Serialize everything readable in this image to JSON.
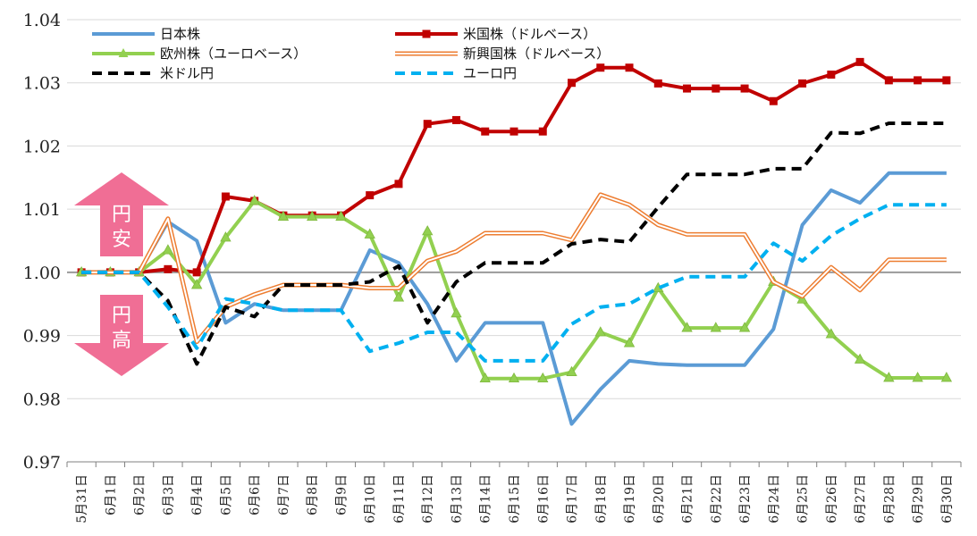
{
  "chart_data": {
    "type": "line",
    "title": "",
    "xlabel": "",
    "ylabel": "",
    "ylim": [
      0.97,
      1.04
    ],
    "yticks": [
      "0.97",
      "0.98",
      "0.99",
      "1.00",
      "1.01",
      "1.02",
      "1.03",
      "1.04"
    ],
    "grid": true,
    "legend_position": "top",
    "categories": [
      "5月31日",
      "6月1日",
      "6月2日",
      "6月3日",
      "6月4日",
      "6月5日",
      "6月6日",
      "6月7日",
      "6月8日",
      "6月9日",
      "6月10日",
      "6月11日",
      "6月12日",
      "6月13日",
      "6月14日",
      "6月15日",
      "6月16日",
      "6月17日",
      "6月18日",
      "6月19日",
      "6月20日",
      "6月21日",
      "6月22日",
      "6月23日",
      "6月24日",
      "6月25日",
      "6月26日",
      "6月27日",
      "6月28日",
      "6月29日",
      "6月30日"
    ],
    "series": [
      {
        "name": "日本株",
        "color": "#5b9bd5",
        "style": "solid",
        "values": [
          1.0,
          1.0,
          1.0,
          1.008,
          1.005,
          0.992,
          0.995,
          0.994,
          0.994,
          0.994,
          1.0035,
          1.0015,
          0.995,
          0.986,
          0.992,
          0.992,
          0.992,
          0.976,
          0.9815,
          0.986,
          0.9855,
          0.9853,
          0.9853,
          0.9853,
          0.991,
          1.0075,
          1.013,
          1.011,
          1.0157,
          1.0157,
          1.0157
        ]
      },
      {
        "name": "米国株（ドルベース）",
        "color": "#c00000",
        "style": "solid-square",
        "values": [
          1.0,
          1.0,
          1.0,
          1.0005,
          1.0,
          1.012,
          1.0113,
          1.009,
          1.009,
          1.009,
          1.0122,
          1.014,
          1.0235,
          1.0241,
          1.0223,
          1.0223,
          1.0223,
          1.03,
          1.0324,
          1.0324,
          1.0299,
          1.0291,
          1.0291,
          1.0291,
          1.0271,
          1.0299,
          1.0313,
          1.0333,
          1.0304,
          1.0304,
          1.0304
        ]
      },
      {
        "name": "欧州株（ユーロベース）",
        "color": "#92d050",
        "style": "solid-triangle",
        "values": [
          1.0,
          1.0,
          1.0,
          1.0035,
          0.998,
          1.0055,
          1.0113,
          1.0088,
          1.0088,
          1.0088,
          1.006,
          0.996,
          1.0065,
          0.9935,
          0.9832,
          0.9832,
          0.9832,
          0.9842,
          0.9905,
          0.9888,
          0.9975,
          0.9912,
          0.9912,
          0.9912,
          0.9985,
          0.9957,
          0.9902,
          0.9862,
          0.9833,
          0.9833,
          0.9833
        ]
      },
      {
        "name": "新興国株（ドルベース）",
        "color": "#ed7d31",
        "style": "double",
        "values": [
          1.0,
          1.0,
          1.0,
          1.0085,
          0.989,
          0.9945,
          0.9965,
          0.998,
          0.998,
          0.998,
          0.9975,
          0.9975,
          1.0018,
          1.0033,
          1.0062,
          1.0062,
          1.0062,
          1.0051,
          1.0123,
          1.0107,
          1.0075,
          1.006,
          1.006,
          1.006,
          0.9985,
          0.9962,
          1.0008,
          0.9972,
          1.002,
          1.002,
          1.002
        ]
      },
      {
        "name": "米ドル円",
        "color": "#000000",
        "style": "dash",
        "values": [
          1.0,
          1.0,
          1.0,
          0.9955,
          0.9855,
          0.9945,
          0.993,
          0.998,
          0.998,
          0.998,
          0.9985,
          1.001,
          0.992,
          0.9985,
          1.0015,
          1.0015,
          1.0015,
          1.0045,
          1.0052,
          1.0048,
          1.0103,
          1.0155,
          1.0155,
          1.0155,
          1.0164,
          1.0164,
          1.0221,
          1.022,
          1.0236,
          1.0236,
          1.0236
        ]
      },
      {
        "name": "ユーロ円",
        "color": "#00b0f0",
        "style": "dash",
        "values": [
          1.0,
          1.0,
          1.0,
          0.9945,
          0.988,
          0.9958,
          0.995,
          0.994,
          0.994,
          0.994,
          0.9875,
          0.9888,
          0.9905,
          0.9905,
          0.986,
          0.986,
          0.986,
          0.9918,
          0.9945,
          0.995,
          0.9975,
          0.9993,
          0.9993,
          0.9993,
          1.0046,
          1.0018,
          1.0058,
          1.0085,
          1.0107,
          1.0107,
          1.0107
        ]
      }
    ],
    "annotations": [
      {
        "text": "円安",
        "direction": "up",
        "color": "#f06e95"
      },
      {
        "text": "円高",
        "direction": "down",
        "color": "#f06e95"
      }
    ]
  }
}
